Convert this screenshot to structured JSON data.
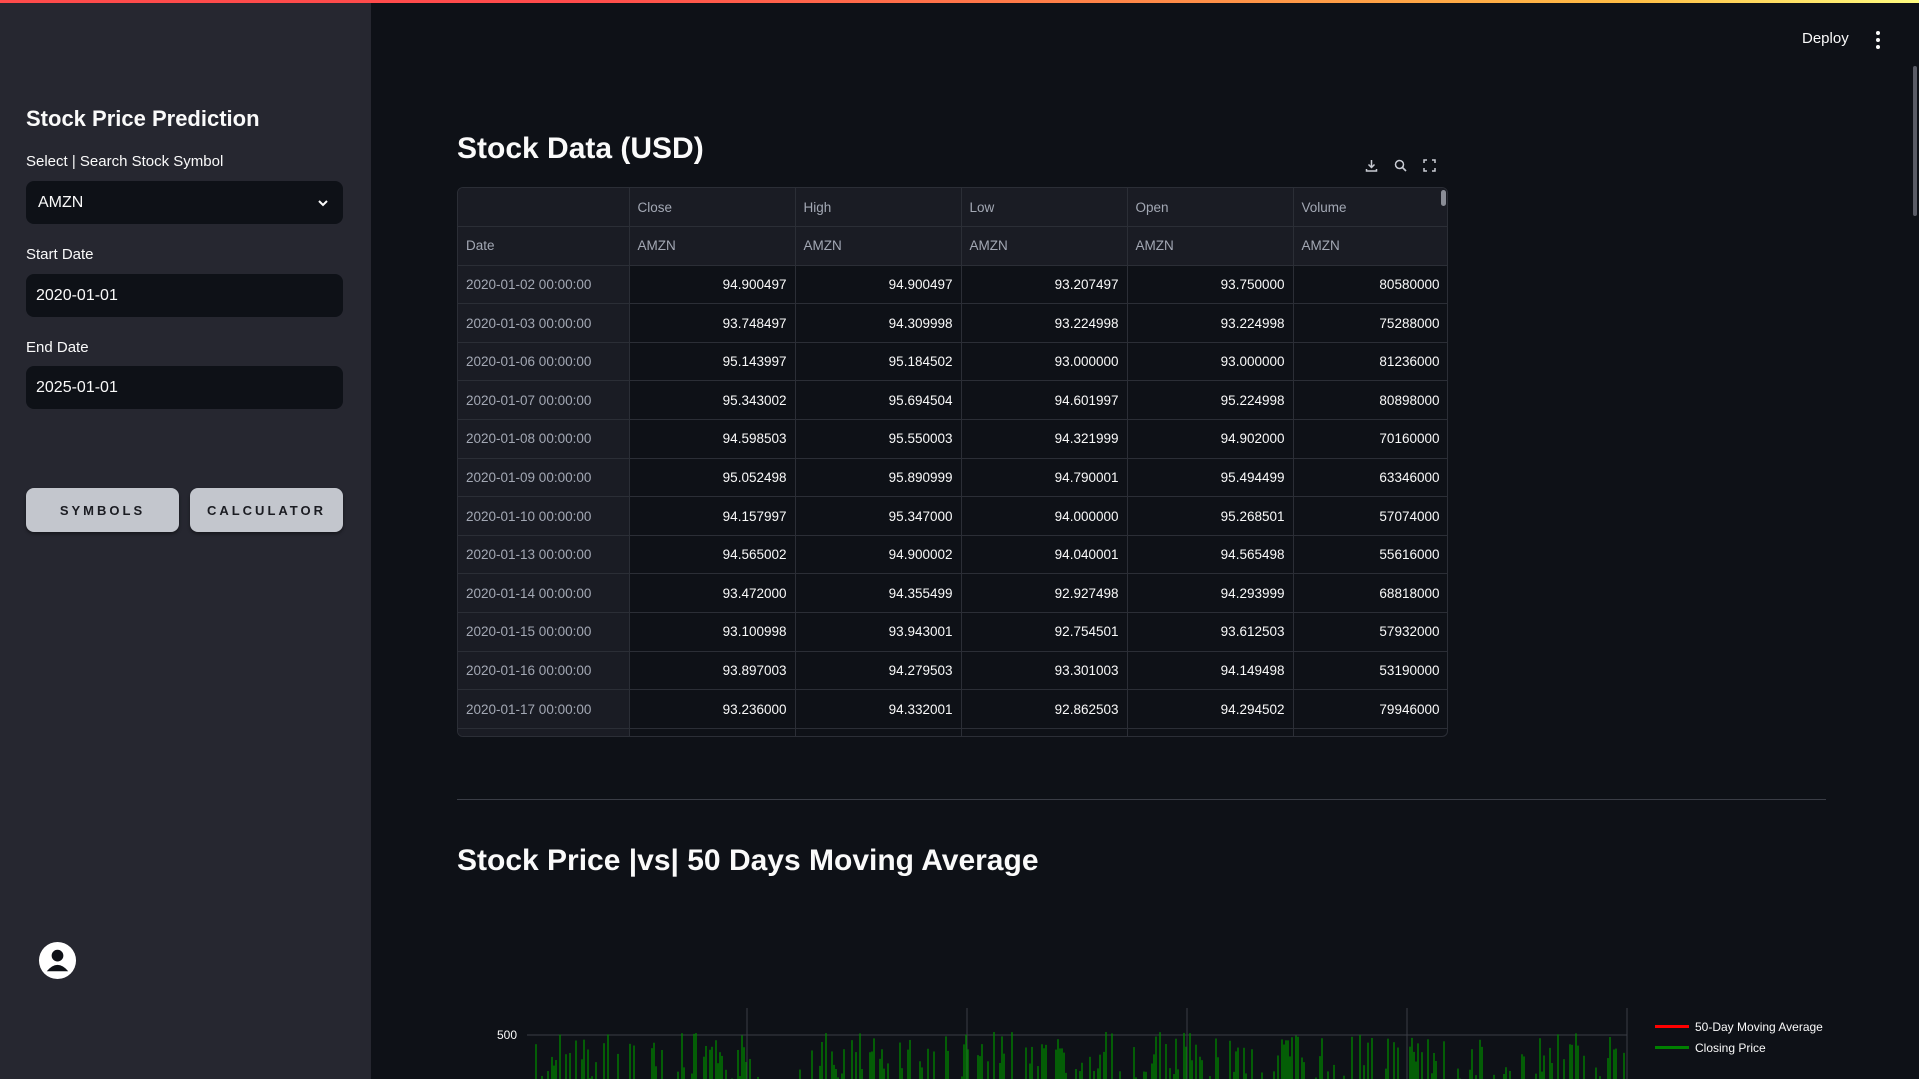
{
  "sidebar": {
    "title": "Stock Price Prediction",
    "symbol_label": "Select | Search Stock Symbol",
    "symbol_value": "AMZN",
    "start_label": "Start Date",
    "start_value": "2020-01-01",
    "end_label": "End Date",
    "end_value": "2025-01-01",
    "buttons": {
      "symbols": "SYMBOLS",
      "calculator": "CALCULATOR"
    }
  },
  "header": {
    "deploy": "Deploy",
    "menu_icon": "kebab-menu-icon"
  },
  "table_section": {
    "title": "Stock Data (USD)",
    "tools": [
      "download-icon",
      "search-icon",
      "fullscreen-icon"
    ],
    "columns": [
      "Close",
      "High",
      "Low",
      "Open",
      "Volume"
    ],
    "subheader": {
      "index": "Date",
      "tickers": [
        "AMZN",
        "AMZN",
        "AMZN",
        "AMZN",
        "AMZN"
      ]
    },
    "rows": [
      [
        "2020-01-02 00:00:00",
        "94.900497",
        "94.900497",
        "93.207497",
        "93.750000",
        "80580000"
      ],
      [
        "2020-01-03 00:00:00",
        "93.748497",
        "94.309998",
        "93.224998",
        "93.224998",
        "75288000"
      ],
      [
        "2020-01-06 00:00:00",
        "95.143997",
        "95.184502",
        "93.000000",
        "93.000000",
        "81236000"
      ],
      [
        "2020-01-07 00:00:00",
        "95.343002",
        "95.694504",
        "94.601997",
        "95.224998",
        "80898000"
      ],
      [
        "2020-01-08 00:00:00",
        "94.598503",
        "95.550003",
        "94.321999",
        "94.902000",
        "70160000"
      ],
      [
        "2020-01-09 00:00:00",
        "95.052498",
        "95.890999",
        "94.790001",
        "95.494499",
        "63346000"
      ],
      [
        "2020-01-10 00:00:00",
        "94.157997",
        "95.347000",
        "94.000000",
        "95.268501",
        "57074000"
      ],
      [
        "2020-01-13 00:00:00",
        "94.565002",
        "94.900002",
        "94.040001",
        "94.565498",
        "55616000"
      ],
      [
        "2020-01-14 00:00:00",
        "93.472000",
        "94.355499",
        "92.927498",
        "94.293999",
        "68818000"
      ],
      [
        "2020-01-15 00:00:00",
        "93.100998",
        "93.943001",
        "92.754501",
        "93.612503",
        "57932000"
      ],
      [
        "2020-01-16 00:00:00",
        "93.897003",
        "94.279503",
        "93.301003",
        "94.149498",
        "53190000"
      ],
      [
        "2020-01-17 00:00:00",
        "93.236000",
        "94.332001",
        "92.862503",
        "94.294502",
        "79946000"
      ]
    ]
  },
  "chart_section": {
    "title": "Stock Price |vs| 50 Days Moving Average"
  },
  "chart_data": {
    "type": "line",
    "title": "",
    "y_tick_labels": [
      "500"
    ],
    "legend": [
      "50-Day Moving Average",
      "Closing Price"
    ],
    "legend_position": "top-right",
    "series": [
      {
        "name": "50-Day Moving Average",
        "color": "#ff0000"
      },
      {
        "name": "Closing Price",
        "color": "#008000"
      }
    ],
    "grid": true
  },
  "colors": {
    "sidebar_bg": "#262730",
    "main_bg": "#0e1117",
    "button_bg": "#c3c6cd",
    "ma_color": "#ff0000",
    "close_color": "#008000"
  }
}
